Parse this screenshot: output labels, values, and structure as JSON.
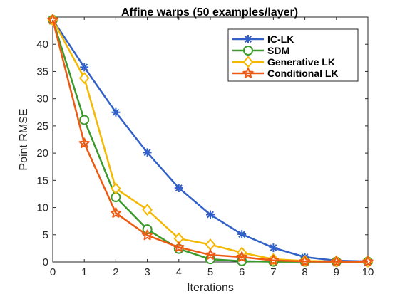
{
  "chart_data": {
    "type": "line",
    "title": "Affine warps (50 examples/layer)",
    "xlabel": "Iterations",
    "ylabel": "Point RMSE",
    "xlim": [
      0,
      10
    ],
    "ylim": [
      0,
      45
    ],
    "xticks": [
      0,
      1,
      2,
      3,
      4,
      5,
      6,
      7,
      8,
      9,
      10
    ],
    "yticks": [
      0,
      5,
      10,
      15,
      20,
      25,
      30,
      35,
      40
    ],
    "grid": false,
    "legend_position": "top-right",
    "x": [
      0,
      1,
      2,
      3,
      4,
      5,
      6,
      7,
      8,
      9,
      10
    ],
    "series": [
      {
        "name": "IC-LK",
        "color": "#3060c8",
        "marker": "asterisk",
        "values": [
          44.5,
          35.8,
          27.5,
          20.1,
          13.6,
          8.7,
          5.1,
          2.6,
          0.9,
          0.25,
          0.1
        ]
      },
      {
        "name": "SDM",
        "color": "#3a9a2a",
        "marker": "circle",
        "values": [
          44.5,
          26.1,
          11.9,
          6.0,
          2.4,
          0.5,
          0.15,
          0.05,
          0.05,
          0.05,
          0.05
        ]
      },
      {
        "name": "Generative LK",
        "color": "#f5b800",
        "marker": "diamond",
        "values": [
          44.5,
          33.8,
          13.5,
          9.6,
          4.3,
          3.2,
          1.7,
          0.5,
          0.2,
          0.1,
          0.05
        ]
      },
      {
        "name": "Conditional LK",
        "color": "#ee5a12",
        "marker": "star",
        "values": [
          44.5,
          21.8,
          9.0,
          4.9,
          2.7,
          1.3,
          0.9,
          0.3,
          0.1,
          0.05,
          0.05
        ]
      }
    ]
  }
}
